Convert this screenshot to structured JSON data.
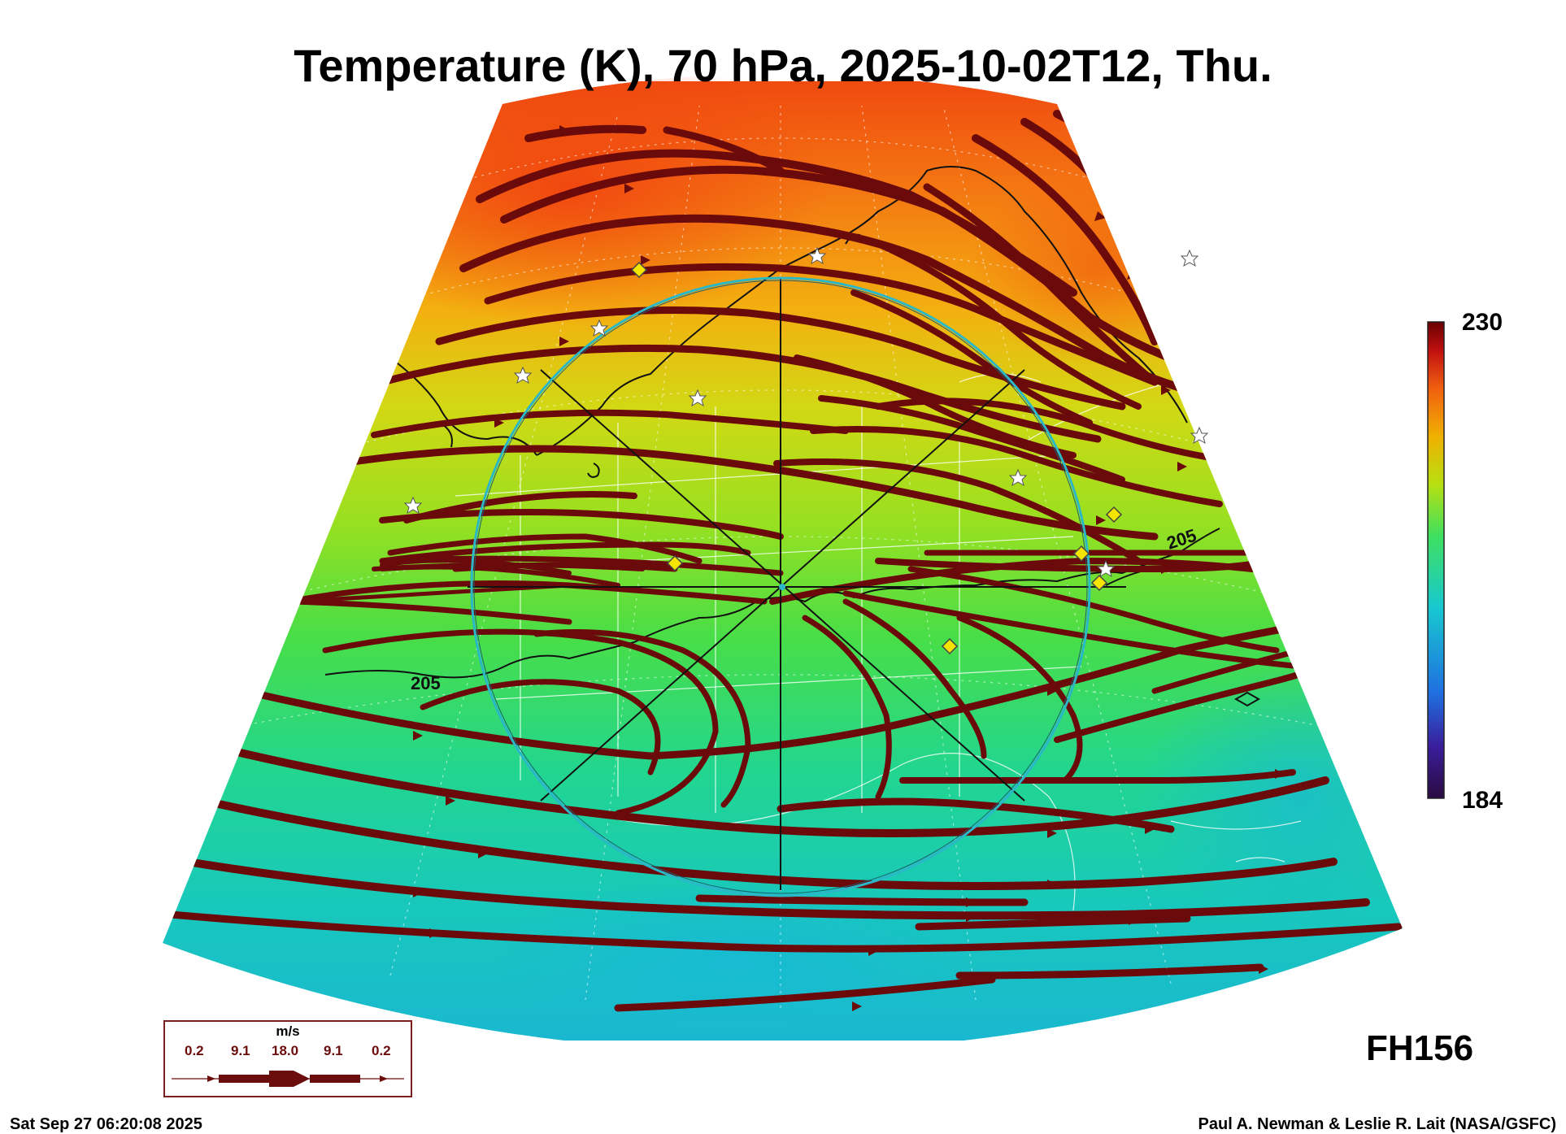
{
  "title": "Temperature (K), 70 hPa, 2025-10-02T12, Thu.",
  "colorbar": {
    "max_label": "230",
    "min_label": "184",
    "colors": [
      "#2a0a40",
      "#3a1e9c",
      "#1f6fe0",
      "#18c8d0",
      "#3ee060",
      "#b8e010",
      "#f0b000",
      "#f06010",
      "#c01010",
      "#6a0000"
    ]
  },
  "contour_labels": [
    "205",
    "205"
  ],
  "forecast_hour": "FH156",
  "wind_key": {
    "unit": "m/s",
    "values": [
      "0.2",
      "9.1",
      "18.0",
      "9.1",
      "0.2"
    ]
  },
  "footer": {
    "timestamp": "Sat Sep 27 06:20:08 2025",
    "credit": "Paul A. Newman & Leslie R. Lait (NASA/GSFC)"
  },
  "colors": {
    "streamline": "#6b0a0a",
    "circle": "#2ab8c8",
    "diamond": "#f5e400",
    "land_outline": "#ffffff"
  },
  "icons": {
    "station_marker": "star-icon",
    "site_marker": "diamond-icon"
  }
}
